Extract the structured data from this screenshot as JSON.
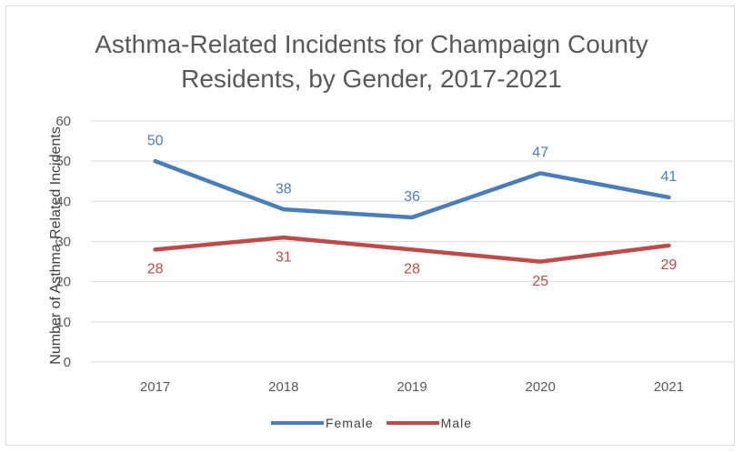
{
  "chart_data": {
    "type": "line",
    "title_lines": [
      "Asthma-Related Incidents for Champaign County",
      "Residents, by Gender, 2017‐2021"
    ],
    "xlabel": "",
    "ylabel": "Number of Asthma-Related Incidents",
    "categories": [
      "2017",
      "2018",
      "2019",
      "2020",
      "2021"
    ],
    "ylim": [
      0,
      60
    ],
    "yticks": [
      0,
      10,
      20,
      30,
      40,
      50,
      60
    ],
    "grid": true,
    "legend_position": "bottom",
    "series": [
      {
        "name": "Female",
        "values": [
          50,
          38,
          36,
          47,
          41
        ],
        "color": "#4a7ebb",
        "labels_position": "above"
      },
      {
        "name": "Male",
        "values": [
          28,
          31,
          28,
          25,
          29
        ],
        "color": "#be4b48",
        "labels_position": "below"
      }
    ]
  }
}
